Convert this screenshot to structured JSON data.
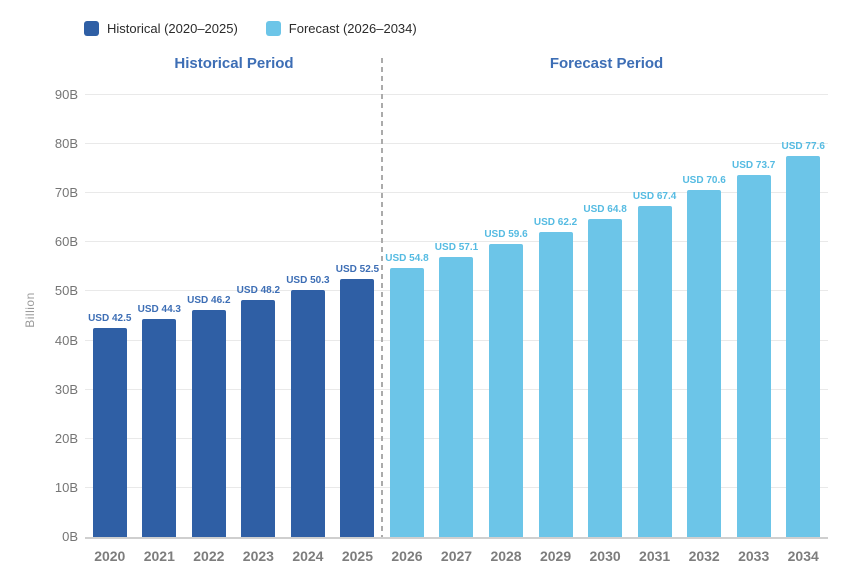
{
  "legend": {
    "items": [
      {
        "label": "Historical (2020–2025)",
        "color": "#2f5fa5"
      },
      {
        "label": "Forecast (2026–2034)",
        "color": "#6cc5e8"
      }
    ]
  },
  "annotations": {
    "historical_period": "Historical Period",
    "forecast_period": "Forecast Period"
  },
  "chart_data": {
    "type": "bar",
    "title": "",
    "xlabel": "",
    "ylabel": "Billion",
    "ylim": [
      0,
      90
    ],
    "y_ticks": [
      "0B",
      "10B",
      "20B",
      "30B",
      "40B",
      "50B",
      "60B",
      "70B",
      "80B",
      "90B"
    ],
    "grid": true,
    "legend_position": "top-left",
    "value_label_prefix": "USD",
    "categories": [
      "2020",
      "2021",
      "2022",
      "2023",
      "2024",
      "2025",
      "2026",
      "2027",
      "2028",
      "2029",
      "2030",
      "2031",
      "2032",
      "2033",
      "2034"
    ],
    "series": [
      {
        "name": "Historical (2020–2025)",
        "color": "#2f5fa5",
        "label_color": "#3d6eb5",
        "values": [
          42.5,
          44.3,
          46.2,
          48.2,
          50.3,
          52.5,
          null,
          null,
          null,
          null,
          null,
          null,
          null,
          null,
          null
        ]
      },
      {
        "name": "Forecast (2026–2034)",
        "color": "#6cc5e8",
        "label_color": "#55bbe2",
        "values": [
          null,
          null,
          null,
          null,
          null,
          null,
          54.8,
          57.1,
          59.6,
          62.2,
          64.8,
          67.4,
          70.6,
          73.7,
          77.6
        ]
      }
    ],
    "separator_after_category": "2025"
  }
}
